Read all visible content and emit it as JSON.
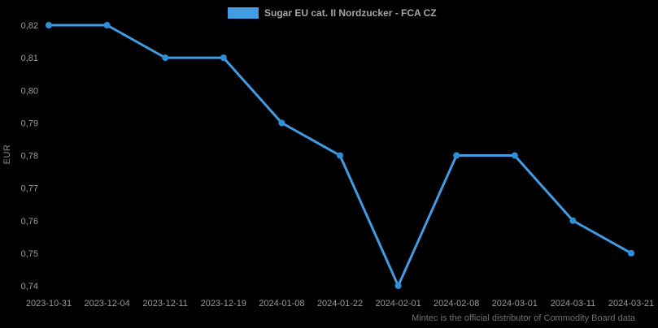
{
  "legend": {
    "label": "Sugar EU cat. II Nordzucker - FCA CZ"
  },
  "footer": {
    "text": "Mintec is the official distributor of Commodity Board data"
  },
  "chart_data": {
    "type": "line",
    "title": "",
    "xlabel": "",
    "ylabel": "EUR",
    "x": [
      "2023-10-31",
      "2023-12-04",
      "2023-12-11",
      "2023-12-19",
      "2024-01-08",
      "2024-01-22",
      "2024-02-01",
      "2024-02-08",
      "2024-03-01",
      "2024-03-11",
      "2024-03-21"
    ],
    "series": [
      {
        "name": "Sugar EU cat. II Nordzucker - FCA CZ",
        "values": [
          0.82,
          0.82,
          0.81,
          0.81,
          0.79,
          0.78,
          0.74,
          0.78,
          0.78,
          0.76,
          0.75
        ],
        "line_color": "#429ce3",
        "marker_color": "#2f8fd6"
      }
    ],
    "ylim": [
      0.74,
      0.82
    ],
    "ytick_step": 0.01,
    "decimal_separator": ",",
    "grid": false,
    "legend_position": "top",
    "background_color": "#000000",
    "tick_label_color": "#9b9b9b"
  }
}
